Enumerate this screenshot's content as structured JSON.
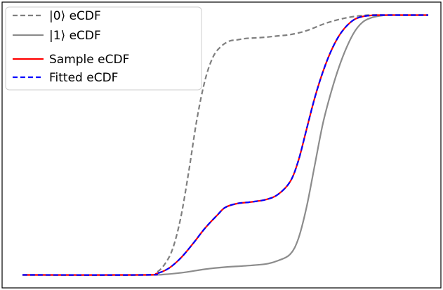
{
  "chart_data": {
    "type": "line",
    "title": "",
    "xlabel": "",
    "ylabel": "",
    "xlim": [
      0,
      100
    ],
    "ylim": [
      -0.05,
      1.05
    ],
    "grid": false,
    "ticks_shown": false,
    "legend_position": "top-left",
    "series": [
      {
        "name": "|0⟩ eCDF",
        "color": "#7f7f7f",
        "style": "dashed",
        "x": [
          0,
          30,
          33,
          35,
          37,
          39,
          41,
          43,
          45,
          47,
          49,
          51,
          53,
          55,
          57,
          60,
          63,
          66,
          70,
          75,
          80,
          85,
          90,
          95,
          100
        ],
        "y": [
          0.0,
          0.0,
          0.01,
          0.04,
          0.1,
          0.22,
          0.4,
          0.6,
          0.75,
          0.84,
          0.88,
          0.9,
          0.905,
          0.91,
          0.912,
          0.915,
          0.92,
          0.925,
          0.94,
          0.97,
          0.99,
          1.0,
          1.0,
          1.0,
          1.0
        ]
      },
      {
        "name": "|1⟩ eCDF",
        "color": "#8c8c8c",
        "style": "solid",
        "x": [
          0,
          30,
          35,
          40,
          45,
          50,
          55,
          60,
          63,
          66,
          68,
          70,
          72,
          74,
          76,
          78,
          80,
          82,
          84,
          86,
          88,
          90,
          93,
          96,
          100
        ],
        "y": [
          0.0,
          0.0,
          0.002,
          0.01,
          0.022,
          0.03,
          0.035,
          0.042,
          0.055,
          0.08,
          0.14,
          0.26,
          0.42,
          0.58,
          0.7,
          0.8,
          0.88,
          0.94,
          0.975,
          0.99,
          0.997,
          1.0,
          1.0,
          1.0,
          1.0
        ]
      },
      {
        "name": "Sample eCDF",
        "color": "#ff0000",
        "style": "solid",
        "x": [
          0,
          30,
          33,
          36,
          39,
          42,
          45,
          48,
          50,
          53,
          56,
          60,
          63,
          66,
          68,
          70,
          72,
          74,
          76,
          78,
          80,
          82,
          84,
          86,
          88,
          90,
          93,
          96,
          100
        ],
        "y": [
          0.0,
          0.0,
          0.005,
          0.025,
          0.065,
          0.12,
          0.18,
          0.23,
          0.26,
          0.275,
          0.28,
          0.29,
          0.31,
          0.36,
          0.44,
          0.56,
          0.68,
          0.78,
          0.86,
          0.92,
          0.96,
          0.985,
          0.995,
          0.999,
          1.0,
          1.0,
          1.0,
          1.0,
          1.0
        ]
      },
      {
        "name": "Fitted eCDF",
        "color": "#0000ff",
        "style": "dashed",
        "x": [
          0,
          30,
          33,
          36,
          39,
          42,
          45,
          48,
          50,
          53,
          56,
          60,
          63,
          66,
          68,
          70,
          72,
          74,
          76,
          78,
          80,
          82,
          84,
          86,
          88,
          90,
          93,
          96,
          100
        ],
        "y": [
          0.0,
          0.0,
          0.005,
          0.025,
          0.065,
          0.12,
          0.18,
          0.23,
          0.26,
          0.275,
          0.28,
          0.29,
          0.31,
          0.36,
          0.44,
          0.56,
          0.68,
          0.78,
          0.86,
          0.92,
          0.96,
          0.985,
          0.995,
          0.999,
          1.0,
          1.0,
          1.0,
          1.0,
          1.0
        ]
      }
    ]
  }
}
